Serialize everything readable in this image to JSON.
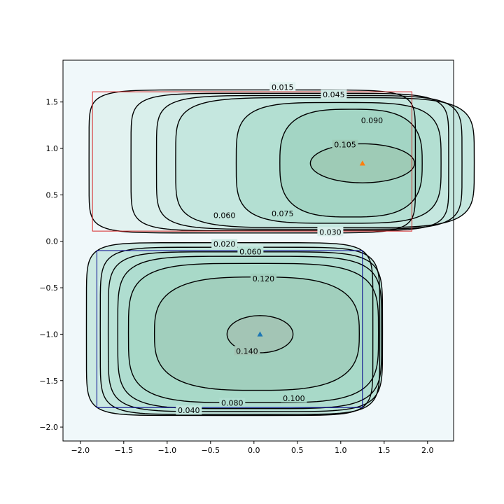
{
  "chart_data": {
    "type": "contour",
    "xlim": [
      -2.2,
      2.3
    ],
    "ylim": [
      -2.15,
      1.95
    ],
    "x_ticks": [
      {
        "value": -2.0,
        "label": "−2.0"
      },
      {
        "value": -1.5,
        "label": "−1.5"
      },
      {
        "value": -1.0,
        "label": "−1.0"
      },
      {
        "value": -0.5,
        "label": "−0.5"
      },
      {
        "value": 0.0,
        "label": "0.0"
      },
      {
        "value": 0.5,
        "label": "0.5"
      },
      {
        "value": 1.0,
        "label": "1.0"
      },
      {
        "value": 1.5,
        "label": "1.5"
      },
      {
        "value": 2.0,
        "label": "2.0"
      }
    ],
    "y_ticks": [
      {
        "value": -2.0,
        "label": "−2.0"
      },
      {
        "value": -1.5,
        "label": "−1.5"
      },
      {
        "value": -1.0,
        "label": "−1.0"
      },
      {
        "value": -0.5,
        "label": "−0.5"
      },
      {
        "value": 0.0,
        "label": "0.0"
      },
      {
        "value": 0.5,
        "label": "0.5"
      },
      {
        "value": 1.0,
        "label": "1.0"
      },
      {
        "value": 1.5,
        "label": "1.5"
      }
    ],
    "background_color": "#f0f8fa",
    "regions": [
      {
        "box": {
          "x0": -1.86,
          "x1": 1.82,
          "y0": 0.11,
          "y1": 1.61,
          "color": "#d62728"
        },
        "center": {
          "x": 1.25,
          "y": 0.84,
          "color": "#ff7f0e"
        },
        "levels": [
          {
            "value": 0.015,
            "label": "0.015",
            "hx": 1.88,
            "hy": 0.77,
            "fill": "#e2f2f0",
            "label_at": {
              "x": 0.33,
              "y": 1.66
            }
          },
          {
            "value": 0.03,
            "label": "0.030",
            "hx": 1.83,
            "hy": 0.74,
            "fill": "#d9efeb",
            "label_at": {
              "x": 0.88,
              "y": 0.1
            }
          },
          {
            "value": 0.045,
            "label": "0.045",
            "hx": 1.76,
            "hy": 0.72,
            "fill": "#d1ebe6",
            "label_at": {
              "x": 0.92,
              "y": 1.58
            }
          },
          {
            "value": 0.06,
            "label": "0.060",
            "hx": 1.72,
            "hy": 0.7,
            "fill": "#c5e7df",
            "label_at": {
              "x": -0.34,
              "y": 0.28
            }
          },
          {
            "value": 0.075,
            "label": "0.075",
            "hx": 1.18,
            "hy": 0.65,
            "fill": "#b3dfd2",
            "label_at": {
              "x": 0.33,
              "y": 0.3
            }
          },
          {
            "value": 0.09,
            "label": "0.090",
            "hx": 0.82,
            "hy": 0.58,
            "fill": "#a3d5c4",
            "label_at": {
              "x": 1.36,
              "y": 1.3
            }
          },
          {
            "value": 0.105,
            "label": "0.105",
            "hx": 0.6,
            "hy": 0.21,
            "fill": "#9ecbb6",
            "label_at": {
              "x": 1.05,
              "y": 1.04
            }
          }
        ]
      },
      {
        "box": {
          "x0": -1.81,
          "x1": 1.25,
          "y0": -1.79,
          "y1": -0.1,
          "color": "#00008b"
        },
        "center": {
          "x": 0.07,
          "y": -1.0,
          "color": "#1f77b4"
        },
        "levels": [
          {
            "value": 0.02,
            "label": "0.020",
            "hx": 1.65,
            "hy": 0.93,
            "fill": "#cbe9e2",
            "label_at": {
              "x": -0.34,
              "y": -0.03
            }
          },
          {
            "value": 0.04,
            "label": "0.040",
            "hx": 1.61,
            "hy": 0.9,
            "fill": "#c2e6dd",
            "label_at": {
              "x": -0.75,
              "y": -1.82
            }
          },
          {
            "value": 0.06,
            "label": "0.060",
            "hx": 1.58,
            "hy": 0.86,
            "fill": "#b9e2d6",
            "label_at": {
              "x": -0.04,
              "y": -0.11
            }
          },
          {
            "value": 0.08,
            "label": "0.080",
            "hx": 1.52,
            "hy": 0.82,
            "fill": "#afddd0",
            "label_at": {
              "x": -0.25,
              "y": -1.74
            }
          },
          {
            "value": 0.1,
            "label": "0.100",
            "hx": 1.44,
            "hy": 0.75,
            "fill": "#a8d9c8",
            "label_at": {
              "x": 0.46,
              "y": -1.69
            }
          },
          {
            "value": 0.12,
            "label": "0.120",
            "hx": 1.18,
            "hy": 0.61,
            "fill": "#a1cfbd",
            "label_at": {
              "x": 0.11,
              "y": -0.4
            }
          },
          {
            "value": 0.14,
            "label": "0.140",
            "hx": 0.38,
            "hy": 0.2,
            "fill": "#a3c5b5",
            "label_at": {
              "x": -0.08,
              "y": -1.18
            }
          }
        ]
      }
    ]
  }
}
